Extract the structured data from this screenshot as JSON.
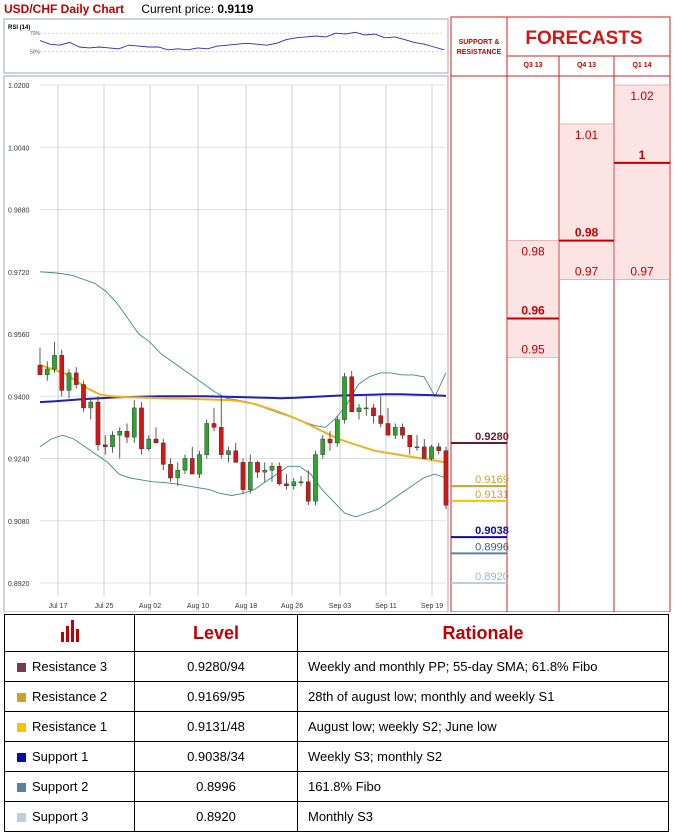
{
  "header": {
    "title": "USD/CHF Daily Chart",
    "price_label": "Current price:",
    "price_value": "0.9119"
  },
  "rsi": {
    "label": "RSI (14)",
    "ticks": [
      "70%",
      "50%"
    ]
  },
  "chart_data": [
    {
      "type": "candlestick",
      "title": "USD/CHF Daily Chart",
      "y_ticks": [
        "1.0200",
        "1.0040",
        "0.9880",
        "0.9720",
        "0.9560",
        "0.9400",
        "0.9240",
        "0.9080",
        "0.8920"
      ],
      "ylim": [
        0.89,
        1.021
      ],
      "x_ticks": [
        "Jul 17",
        "Jul 25",
        "Aug 02",
        "Aug 10",
        "Aug 18",
        "Aug 26",
        "Sep 03",
        "Sep 11",
        "Sep 19"
      ],
      "grid": true,
      "candles": [
        [
          0.948,
          0.9525,
          0.9455,
          0.9455
        ],
        [
          0.9455,
          0.949,
          0.944,
          0.947
        ],
        [
          0.947,
          0.954,
          0.946,
          0.9505
        ],
        [
          0.9505,
          0.952,
          0.94,
          0.9415
        ],
        [
          0.9415,
          0.947,
          0.9395,
          0.946
        ],
        [
          0.946,
          0.9475,
          0.942,
          0.943
        ],
        [
          0.943,
          0.944,
          0.936,
          0.937
        ],
        [
          0.937,
          0.9395,
          0.934,
          0.9385
        ],
        [
          0.9385,
          0.94,
          0.926,
          0.9275
        ],
        [
          0.9275,
          0.93,
          0.925,
          0.927
        ],
        [
          0.927,
          0.931,
          0.9255,
          0.93
        ],
        [
          0.93,
          0.932,
          0.924,
          0.931
        ],
        [
          0.931,
          0.933,
          0.928,
          0.9295
        ],
        [
          0.9295,
          0.939,
          0.928,
          0.937
        ],
        [
          0.937,
          0.9385,
          0.925,
          0.9265
        ],
        [
          0.9265,
          0.93,
          0.926,
          0.929
        ],
        [
          0.929,
          0.932,
          0.928,
          0.928
        ],
        [
          0.928,
          0.929,
          0.921,
          0.9225
        ],
        [
          0.9225,
          0.924,
          0.918,
          0.919
        ],
        [
          0.919,
          0.923,
          0.917,
          0.921
        ],
        [
          0.921,
          0.925,
          0.92,
          0.924
        ],
        [
          0.924,
          0.927,
          0.92,
          0.92
        ],
        [
          0.92,
          0.926,
          0.919,
          0.925
        ],
        [
          0.925,
          0.934,
          0.924,
          0.933
        ],
        [
          0.933,
          0.937,
          0.931,
          0.932
        ],
        [
          0.932,
          0.94,
          0.924,
          0.925
        ],
        [
          0.925,
          0.927,
          0.923,
          0.926
        ],
        [
          0.926,
          0.928,
          0.923,
          0.923
        ],
        [
          0.923,
          0.924,
          0.915,
          0.916
        ],
        [
          0.916,
          0.925,
          0.915,
          0.923
        ],
        [
          0.923,
          0.9235,
          0.919,
          0.9205
        ],
        [
          0.9205,
          0.923,
          0.918,
          0.921
        ],
        [
          0.921,
          0.923,
          0.918,
          0.922
        ],
        [
          0.922,
          0.923,
          0.917,
          0.9175
        ],
        [
          0.9175,
          0.92,
          0.916,
          0.917
        ],
        [
          0.917,
          0.919,
          0.916,
          0.918
        ],
        [
          0.918,
          0.9195,
          0.917,
          0.918
        ],
        [
          0.918,
          0.921,
          0.912,
          0.913
        ],
        [
          0.913,
          0.926,
          0.912,
          0.925
        ],
        [
          0.925,
          0.93,
          0.924,
          0.929
        ],
        [
          0.929,
          0.931,
          0.926,
          0.928
        ],
        [
          0.928,
          0.935,
          0.927,
          0.934
        ],
        [
          0.934,
          0.946,
          0.933,
          0.945
        ],
        [
          0.945,
          0.9465,
          0.936,
          0.936
        ],
        [
          0.936,
          0.938,
          0.934,
          0.937
        ],
        [
          0.937,
          0.94,
          0.935,
          0.937
        ],
        [
          0.937,
          0.938,
          0.933,
          0.935
        ],
        [
          0.935,
          0.94,
          0.932,
          0.933
        ],
        [
          0.933,
          0.937,
          0.93,
          0.93
        ],
        [
          0.93,
          0.933,
          0.929,
          0.932
        ],
        [
          0.932,
          0.933,
          0.929,
          0.93
        ],
        [
          0.93,
          0.93,
          0.925,
          0.927
        ],
        [
          0.927,
          0.93,
          0.926,
          0.927
        ],
        [
          0.927,
          0.929,
          0.924,
          0.924
        ],
        [
          0.924,
          0.9275,
          0.9235,
          0.927
        ],
        [
          0.927,
          0.928,
          0.925,
          0.926
        ],
        [
          0.926,
          0.927,
          0.911,
          0.912
        ]
      ],
      "sma_55": [
        0.948,
        0.947,
        0.946,
        0.944,
        0.942,
        0.9405,
        0.94,
        0.9398,
        0.9397,
        0.9396,
        0.9395,
        0.9394,
        0.9394,
        0.9393,
        0.9392,
        0.9391,
        0.939,
        0.9386,
        0.938,
        0.937,
        0.936,
        0.9348,
        0.9335,
        0.932,
        0.9305,
        0.929,
        0.928,
        0.927,
        0.926,
        0.9255,
        0.925,
        0.9245,
        0.924,
        0.9235,
        0.923
      ],
      "sma_long": [
        0.9385,
        0.9387,
        0.939,
        0.9393,
        0.9395,
        0.9397,
        0.9398,
        0.9399,
        0.94,
        0.94,
        0.94,
        0.94,
        0.9399,
        0.9398,
        0.9397,
        0.9396,
        0.9395,
        0.9396,
        0.9398,
        0.94,
        0.9402,
        0.9403,
        0.9404,
        0.9405,
        0.9405,
        0.9404,
        0.9403,
        0.9401
      ],
      "bollinger_upper": [
        0.972,
        0.9718,
        0.9715,
        0.971,
        0.97,
        0.969,
        0.967,
        0.964,
        0.96,
        0.956,
        0.954,
        0.951,
        0.949,
        0.947,
        0.945,
        0.943,
        0.941,
        0.9395,
        0.939,
        0.9385,
        0.9375,
        0.9365,
        0.9355,
        0.9345,
        0.9335,
        0.9325,
        0.932,
        0.9345,
        0.938,
        0.943,
        0.945,
        0.946,
        0.946,
        0.9455,
        0.9455,
        0.945,
        0.94,
        0.946
      ],
      "bollinger_lower": [
        0.927,
        0.929,
        0.93,
        0.929,
        0.927,
        0.925,
        0.923,
        0.92,
        0.919,
        0.9185,
        0.918,
        0.9178,
        0.9175,
        0.917,
        0.9165,
        0.916,
        0.915,
        0.9145,
        0.915,
        0.916,
        0.918,
        0.92,
        0.922,
        0.922,
        0.92,
        0.916,
        0.913,
        0.91,
        0.909,
        0.91,
        0.911,
        0.913,
        0.915,
        0.917,
        0.919,
        0.92,
        0.919
      ]
    },
    {
      "type": "line",
      "title": "RSI (14)",
      "y_ticks": [
        "70%",
        "50%"
      ],
      "ylim": [
        30,
        80
      ],
      "values": [
        62,
        58,
        57,
        60,
        55,
        54,
        55,
        54,
        53,
        57,
        56,
        55,
        55,
        52,
        53,
        52,
        54,
        53,
        56,
        57,
        58,
        59,
        58,
        57,
        59,
        63,
        65,
        66,
        67,
        66,
        70,
        69,
        71,
        68,
        69,
        65,
        66,
        63,
        60,
        58,
        55,
        52
      ]
    },
    {
      "type": "range",
      "title": "FORECASTS",
      "categories": [
        "Q3 13",
        "Q4 13",
        "Q1 14"
      ],
      "ylim": [
        0.89,
        1.021
      ],
      "series": [
        {
          "name": "Q3 13",
          "low": 0.95,
          "mid": 0.96,
          "high": 0.98,
          "labels": [
            "0.98",
            "0.96",
            "0.95"
          ]
        },
        {
          "name": "Q4 13",
          "low": 0.97,
          "mid": 0.98,
          "high": 1.01,
          "labels": [
            "1.01",
            "0.98",
            "0.97"
          ]
        },
        {
          "name": "Q1 14",
          "low": 0.97,
          "mid": 1.0,
          "high": 1.02,
          "labels": [
            "1.02",
            "1",
            "0.97"
          ]
        }
      ]
    }
  ],
  "support_resistance": {
    "header": "SUPPORT & RESISTANCE",
    "levels": [
      {
        "value": 0.928,
        "label": "0.9280",
        "color": "#6b1a2a",
        "text_color": "#6b1a2a",
        "bold": true
      },
      {
        "value": 0.9169,
        "label": "0.9169",
        "color": "#c9a227",
        "text_color": "#c9a227",
        "bold": false
      },
      {
        "value": 0.9131,
        "label": "0.9131",
        "color": "#f5c400",
        "text_color": "#c9a227",
        "bold": false
      },
      {
        "value": 0.9038,
        "label": "0.9038",
        "color": "#0a0aa8",
        "text_color": "#0a0aa8",
        "bold": true
      },
      {
        "value": 0.8996,
        "label": "0.8996",
        "color": "#5b7fa6",
        "text_color": "#3a5f86",
        "bold": false
      },
      {
        "value": 0.892,
        "label": "0.8920",
        "color": "#b8d0e0",
        "text_color": "#9ab8cc",
        "bold": false
      }
    ]
  },
  "levels_table": {
    "headers": {
      "level": "Level",
      "rationale": "Rationale"
    },
    "rows": [
      {
        "name": "Resistance 3",
        "color": "#7b3a46",
        "level": "0.9280/94",
        "rationale": "Weekly and monthly PP; 55-day SMA; 61.8% Fibo"
      },
      {
        "name": "Resistance 2",
        "color": "#c9a227",
        "level": "0.9169/95",
        "rationale": "28th of august low; monthly and weekly S1"
      },
      {
        "name": "Resistance 1",
        "color": "#f5c400",
        "level": "0.9131/48",
        "rationale": "August low; weekly S2; June low"
      },
      {
        "name": "Support 1",
        "color": "#0a0aa8",
        "level": "0.9038/34",
        "rationale": "Weekly S3; monthly S2"
      },
      {
        "name": "Support 2",
        "color": "#5b7fa6",
        "level": "0.8996",
        "rationale": "161.8% Fibo"
      },
      {
        "name": "Support 3",
        "color": "#b8d0e0",
        "level": "0.8920",
        "rationale": "Monthly S3"
      }
    ]
  },
  "colors": {
    "accent_red": "#c00000",
    "bull": "#2ea62e",
    "bear": "#d01818",
    "sma_55": "#f2b01e",
    "sma_long": "#2020b0",
    "bollinger": "#3a8a8a",
    "forecast_fill": "#fde4e4"
  }
}
